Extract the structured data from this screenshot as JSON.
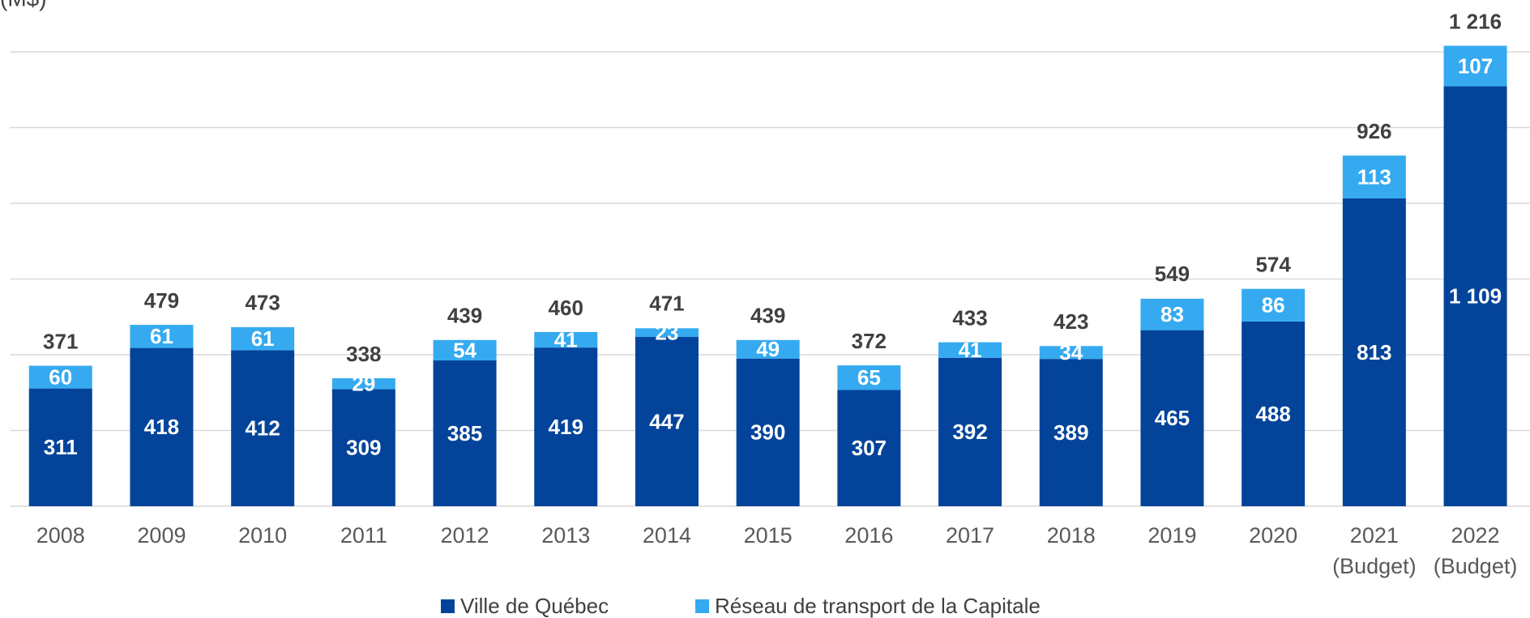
{
  "chart_data": {
    "type": "stacked_bar",
    "title": "(M$)",
    "categories": [
      "2008",
      "2009",
      "2010",
      "2011",
      "2012",
      "2013",
      "2014",
      "2015",
      "2016",
      "2017",
      "2018",
      "2019",
      "2020",
      "2021\n(Budget)",
      "2022\n(Budget)"
    ],
    "series": [
      {
        "name": "Ville de Québec",
        "color": "#03449a",
        "values": [
          311,
          418,
          412,
          309,
          385,
          419,
          447,
          390,
          307,
          392,
          389,
          465,
          488,
          813,
          1109
        ],
        "value_labels": [
          "311",
          "418",
          "412",
          "309",
          "385",
          "419",
          "447",
          "390",
          "307",
          "392",
          "389",
          "465",
          "488",
          "813",
          "1 109"
        ]
      },
      {
        "name": "Réseau de transport de la Capitale",
        "color": "#35aaf0",
        "values": [
          60,
          61,
          61,
          29,
          54,
          41,
          23,
          49,
          65,
          41,
          34,
          83,
          86,
          113,
          107
        ],
        "value_labels": [
          "60",
          "61",
          "61",
          "29",
          "54",
          "41",
          "23",
          "49",
          "65",
          "41",
          "34",
          "83",
          "86",
          "113",
          "107"
        ]
      }
    ],
    "totals": [
      371,
      479,
      473,
      338,
      439,
      460,
      471,
      439,
      372,
      433,
      423,
      549,
      574,
      926,
      1216
    ],
    "total_labels": [
      "371",
      "479",
      "473",
      "338",
      "439",
      "460",
      "471",
      "439",
      "372",
      "433",
      "423",
      "549",
      "574",
      "926",
      "1 216"
    ],
    "ylim": [
      0,
      1200
    ],
    "yticks": [
      0,
      200,
      400,
      600,
      800,
      1000,
      1200
    ],
    "grid": true,
    "legend": "bottom"
  }
}
